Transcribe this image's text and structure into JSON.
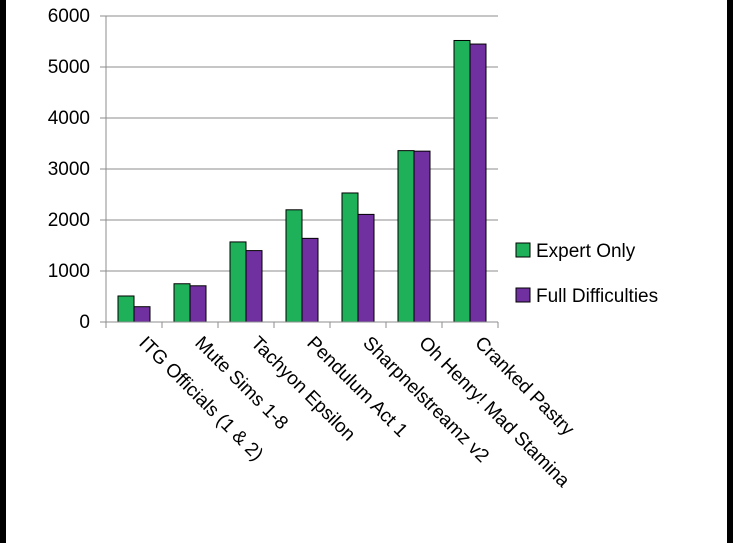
{
  "chart_data": {
    "type": "bar",
    "title": "",
    "xlabel": "",
    "ylabel": "",
    "ylim": [
      0,
      6000
    ],
    "yticks": [
      0,
      1000,
      2000,
      3000,
      4000,
      5000,
      6000
    ],
    "grid": true,
    "legend_position": "right",
    "categories": [
      "ITG Officials (1 & 2)",
      "Mute Sims 1-8",
      "Tachyon Epsilon",
      "Pendulum Act 1",
      "Sharpnelstreamz v2",
      "Oh Henry! Mad Stamina",
      "Cranked Pastry"
    ],
    "series": [
      {
        "name": "Expert Only",
        "color": "#1fb05a",
        "values": [
          510,
          750,
          1570,
          2200,
          2530,
          3360,
          5520
        ]
      },
      {
        "name": "Full Difficulties",
        "color": "#7030a0",
        "values": [
          300,
          710,
          1400,
          1640,
          2110,
          3350,
          5450
        ]
      }
    ]
  }
}
